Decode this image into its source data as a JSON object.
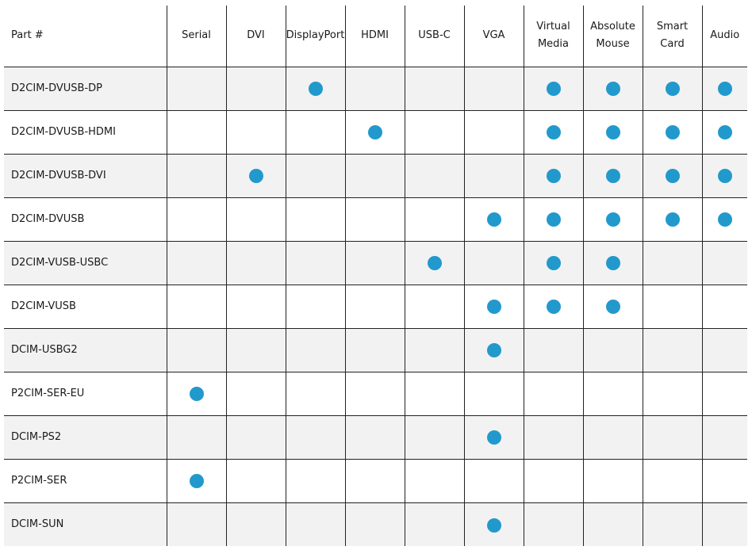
{
  "colors": {
    "dot": "#2299cc",
    "shaded_row": "#f2f2f2",
    "grid": "#222222"
  },
  "table": {
    "part_header": "Part #",
    "columns": [
      {
        "key": "serial",
        "lines": [
          "Serial"
        ]
      },
      {
        "key": "dvi",
        "lines": [
          "DVI"
        ]
      },
      {
        "key": "displayport",
        "lines": [
          "DisplayPort"
        ]
      },
      {
        "key": "hdmi",
        "lines": [
          "HDMI"
        ]
      },
      {
        "key": "usbc",
        "lines": [
          "USB-C"
        ]
      },
      {
        "key": "vga",
        "lines": [
          "VGA"
        ]
      },
      {
        "key": "virtual_media",
        "lines": [
          "Virtual",
          "Media"
        ]
      },
      {
        "key": "absolute_mouse",
        "lines": [
          "Absolute",
          "Mouse"
        ]
      },
      {
        "key": "smart_card",
        "lines": [
          "Smart",
          "Card"
        ]
      },
      {
        "key": "audio",
        "lines": [
          "Audio"
        ]
      }
    ],
    "rows": [
      {
        "part": "D2CIM-DVUSB-DP",
        "shaded": true,
        "features": [
          "displayport",
          "virtual_media",
          "absolute_mouse",
          "smart_card",
          "audio"
        ]
      },
      {
        "part": "D2CIM-DVUSB-HDMI",
        "shaded": false,
        "features": [
          "hdmi",
          "virtual_media",
          "absolute_mouse",
          "smart_card",
          "audio"
        ]
      },
      {
        "part": "D2CIM-DVUSB-DVI",
        "shaded": true,
        "features": [
          "dvi",
          "virtual_media",
          "absolute_mouse",
          "smart_card",
          "audio"
        ]
      },
      {
        "part": "D2CIM-DVUSB",
        "shaded": false,
        "features": [
          "vga",
          "virtual_media",
          "absolute_mouse",
          "smart_card",
          "audio"
        ]
      },
      {
        "part": "D2CIM-VUSB-USBC",
        "shaded": true,
        "features": [
          "usbc",
          "virtual_media",
          "absolute_mouse"
        ]
      },
      {
        "part": "D2CIM-VUSB",
        "shaded": false,
        "features": [
          "vga",
          "virtual_media",
          "absolute_mouse"
        ]
      },
      {
        "part": "DCIM-USBG2",
        "shaded": true,
        "features": [
          "vga"
        ]
      },
      {
        "part": "P2CIM-SER-EU",
        "shaded": false,
        "features": [
          "serial"
        ]
      },
      {
        "part": "DCIM-PS2",
        "shaded": true,
        "features": [
          "vga"
        ]
      },
      {
        "part": "P2CIM-SER",
        "shaded": false,
        "features": [
          "serial"
        ]
      },
      {
        "part": "DCIM-SUN",
        "shaded": true,
        "features": [
          "vga"
        ]
      }
    ]
  }
}
